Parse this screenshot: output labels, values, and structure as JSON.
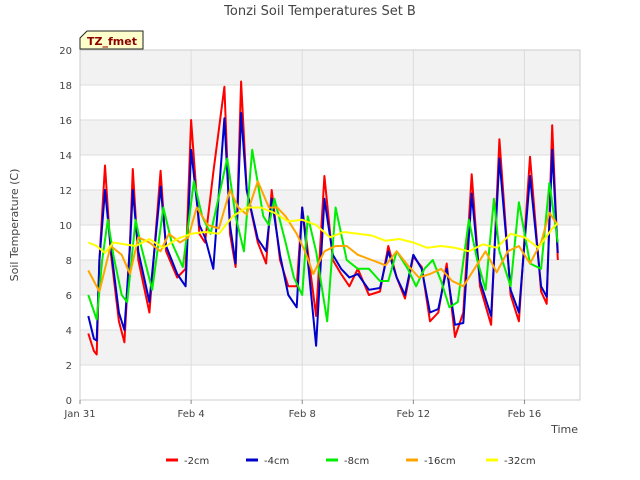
{
  "chart_data": {
    "type": "line",
    "title": "Tonzi Soil Temperatures Set B",
    "xlabel": "Time",
    "ylabel": "Soil Temperature (C)",
    "annotation": "TZ_fmet",
    "ylim": [
      0,
      20
    ],
    "yticks": [
      0,
      2,
      4,
      6,
      8,
      10,
      12,
      14,
      16,
      18,
      20
    ],
    "xlim_days": [
      0,
      18
    ],
    "x_unit": "days since Jan 31",
    "xticks": [
      {
        "day": 0,
        "label": "Jan 31"
      },
      {
        "day": 4,
        "label": "Feb 4"
      },
      {
        "day": 8,
        "label": "Feb 8"
      },
      {
        "day": 12,
        "label": "Feb 12"
      },
      {
        "day": 16,
        "label": "Feb 16"
      }
    ],
    "grid": true,
    "legend_position": "bottom",
    "series": [
      {
        "name": "-2cm",
        "color": "#ff0000",
        "x": [
          0.3,
          0.5,
          0.6,
          0.7,
          0.9,
          1.1,
          1.4,
          1.6,
          1.8,
          1.9,
          2.1,
          2.5,
          2.9,
          3.1,
          3.5,
          3.8,
          4.0,
          4.3,
          4.5,
          4.8,
          5.2,
          5.4,
          5.6,
          5.8,
          6.0,
          6.4,
          6.7,
          6.9,
          7.2,
          7.5,
          7.8,
          8.0,
          8.2,
          8.5,
          8.8,
          9.1,
          9.4,
          9.7,
          10.0,
          10.4,
          10.8,
          11.1,
          11.4,
          11.7,
          12.0,
          12.3,
          12.6,
          12.9,
          13.2,
          13.5,
          13.8,
          14.1,
          14.4,
          14.8,
          15.1,
          15.5,
          15.8,
          16.2,
          16.6,
          16.8,
          17.0,
          17.2
        ],
        "y": [
          3.8,
          2.8,
          2.6,
          8.0,
          13.4,
          8.5,
          4.5,
          3.3,
          9.0,
          13.2,
          8.0,
          5.0,
          13.1,
          8.5,
          7.0,
          7.5,
          16.0,
          9.5,
          9.0,
          13.0,
          17.9,
          9.5,
          7.6,
          18.2,
          12.0,
          9.0,
          7.8,
          12.0,
          8.0,
          6.5,
          6.5,
          11.0,
          8.5,
          4.8,
          12.8,
          8.0,
          7.2,
          6.5,
          7.5,
          6.0,
          6.2,
          8.8,
          7.0,
          5.8,
          8.2,
          7.6,
          4.5,
          5.0,
          7.8,
          3.6,
          5.0,
          12.9,
          6.5,
          4.3,
          14.9,
          6.0,
          4.5,
          13.9,
          6.2,
          5.5,
          15.7,
          8.0
        ]
      },
      {
        "name": "-4cm",
        "color": "#0000cc",
        "x": [
          0.3,
          0.5,
          0.6,
          0.7,
          0.9,
          1.1,
          1.4,
          1.6,
          1.8,
          1.9,
          2.1,
          2.5,
          2.9,
          3.1,
          3.5,
          3.8,
          4.0,
          4.3,
          4.5,
          4.8,
          5.2,
          5.4,
          5.6,
          5.8,
          6.0,
          6.4,
          6.7,
          6.9,
          7.2,
          7.5,
          7.8,
          8.0,
          8.2,
          8.5,
          8.8,
          9.1,
          9.4,
          9.7,
          10.0,
          10.4,
          10.8,
          11.1,
          11.4,
          11.7,
          12.0,
          12.3,
          12.6,
          12.9,
          13.2,
          13.5,
          13.8,
          14.1,
          14.4,
          14.8,
          15.1,
          15.5,
          15.8,
          16.2,
          16.6,
          16.8,
          17.0,
          17.2
        ],
        "y": [
          4.8,
          3.5,
          3.4,
          8.0,
          12.0,
          8.8,
          5.0,
          4.0,
          8.8,
          12.0,
          8.5,
          5.6,
          12.2,
          8.8,
          7.2,
          6.5,
          14.3,
          10.0,
          9.3,
          7.5,
          16.1,
          10.0,
          7.8,
          16.4,
          12.0,
          9.2,
          8.5,
          11.5,
          8.3,
          6.0,
          5.3,
          11.0,
          8.0,
          3.1,
          11.5,
          8.3,
          7.5,
          7.0,
          7.2,
          6.3,
          6.4,
          8.5,
          7.0,
          6.0,
          8.3,
          7.5,
          5.0,
          5.2,
          7.5,
          4.3,
          4.4,
          11.8,
          6.8,
          4.8,
          13.8,
          6.3,
          5.0,
          12.8,
          6.5,
          5.9,
          14.3,
          8.4
        ]
      },
      {
        "name": "-8cm",
        "color": "#00ee00",
        "x": [
          0.3,
          0.6,
          0.8,
          1.0,
          1.2,
          1.5,
          1.7,
          2.0,
          2.2,
          2.6,
          3.0,
          3.3,
          3.7,
          4.1,
          4.4,
          4.7,
          5.3,
          5.6,
          5.9,
          6.2,
          6.6,
          6.8,
          7.0,
          7.4,
          7.7,
          8.0,
          8.2,
          8.5,
          8.9,
          9.2,
          9.6,
          10.0,
          10.4,
          10.8,
          11.1,
          11.4,
          11.8,
          12.1,
          12.4,
          12.7,
          13.0,
          13.3,
          13.6,
          14.0,
          14.3,
          14.6,
          14.9,
          15.1,
          15.5,
          15.8,
          16.2,
          16.6,
          16.9,
          17.2
        ],
        "y": [
          6.0,
          4.6,
          8.0,
          10.3,
          8.3,
          6.0,
          5.6,
          10.3,
          8.8,
          6.3,
          11.0,
          9.0,
          7.6,
          12.5,
          10.5,
          9.5,
          13.8,
          10.5,
          8.5,
          14.3,
          10.5,
          10.0,
          11.5,
          9.0,
          7.0,
          6.0,
          10.5,
          8.5,
          4.5,
          11.0,
          8.0,
          7.5,
          7.5,
          6.8,
          6.8,
          8.5,
          7.5,
          6.5,
          7.5,
          8.0,
          6.8,
          5.3,
          5.6,
          10.3,
          8.0,
          6.3,
          11.5,
          8.5,
          6.5,
          11.3,
          7.8,
          7.5,
          12.4,
          9.0
        ]
      },
      {
        "name": "-16cm",
        "color": "#ffa500",
        "x": [
          0.3,
          0.7,
          0.9,
          1.1,
          1.5,
          1.8,
          2.1,
          2.5,
          2.9,
          3.2,
          3.6,
          3.9,
          4.2,
          4.6,
          5.0,
          5.4,
          5.7,
          6.0,
          6.4,
          6.8,
          7.1,
          7.4,
          7.8,
          8.1,
          8.4,
          8.8,
          9.2,
          9.6,
          10.0,
          10.5,
          11.0,
          11.4,
          11.8,
          12.2,
          12.6,
          13.0,
          13.4,
          13.8,
          14.2,
          14.6,
          15.0,
          15.4,
          15.8,
          16.2,
          16.6,
          16.9,
          17.2
        ],
        "y": [
          7.4,
          6.2,
          7.5,
          8.8,
          8.3,
          7.2,
          9.3,
          9.0,
          8.5,
          9.5,
          9.0,
          9.3,
          11.0,
          10.0,
          9.8,
          12.0,
          11.0,
          10.6,
          12.5,
          11.0,
          11.0,
          10.5,
          9.5,
          8.5,
          7.2,
          8.5,
          8.8,
          8.8,
          8.3,
          8.0,
          7.7,
          8.5,
          7.7,
          7.0,
          7.2,
          7.5,
          6.8,
          6.5,
          7.5,
          8.5,
          7.3,
          8.5,
          8.8,
          7.8,
          9.0,
          10.7,
          10.0
        ]
      },
      {
        "name": "-32cm",
        "color": "#ffff00",
        "x": [
          0.3,
          0.6,
          0.9,
          1.2,
          1.6,
          2.0,
          2.5,
          3.0,
          3.5,
          4.0,
          4.5,
          5.0,
          5.5,
          6.0,
          6.5,
          7.0,
          7.5,
          8.0,
          8.5,
          9.0,
          9.5,
          10.0,
          10.5,
          11.0,
          11.5,
          12.0,
          12.5,
          13.0,
          13.5,
          14.0,
          14.5,
          15.0,
          15.5,
          16.0,
          16.5,
          17.0,
          17.2
        ],
        "y": [
          9.0,
          8.8,
          8.4,
          9.0,
          8.9,
          8.8,
          9.2,
          8.7,
          9.2,
          9.5,
          9.6,
          9.5,
          10.5,
          11.0,
          11.0,
          10.7,
          10.2,
          10.3,
          10.0,
          9.3,
          9.6,
          9.5,
          9.4,
          9.1,
          9.2,
          9.0,
          8.7,
          8.8,
          8.7,
          8.5,
          8.9,
          8.7,
          9.5,
          9.3,
          8.7,
          9.8,
          10.1
        ]
      }
    ]
  }
}
